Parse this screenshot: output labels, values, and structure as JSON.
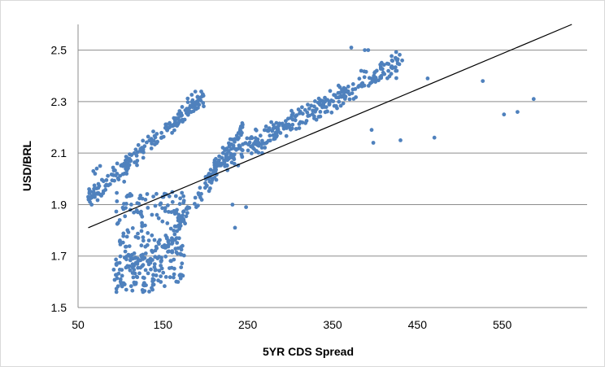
{
  "chart_data": {
    "type": "scatter",
    "title": "",
    "xlabel": "5YR CDS Spread",
    "ylabel": "USD/BRL",
    "xlim": [
      50,
      650
    ],
    "ylim": [
      1.5,
      2.6
    ],
    "x_ticks": [
      "50",
      "150",
      "250",
      "350",
      "450",
      "550"
    ],
    "y_ticks": [
      "1.5",
      "1.7",
      "1.9",
      "2.1",
      "2.3",
      "2.5"
    ],
    "grid": "horizontal",
    "legend": "none",
    "point_color": "#4f81bd",
    "trendline_color": "#000000",
    "trendline": {
      "x": [
        62,
        632
      ],
      "y": [
        1.81,
        2.6
      ]
    },
    "clusters": [
      {
        "name": "upper-left-arc",
        "x": [
          62,
          200
        ],
        "y_start": 1.92,
        "y_end": 2.33,
        "count": 200
      },
      {
        "name": "dense-core",
        "x": [
          95,
          175
        ],
        "y": [
          1.58,
          1.95
        ],
        "count": 230
      },
      {
        "name": "lower-tail",
        "x": [
          92,
          150
        ],
        "y": [
          1.56,
          1.7
        ],
        "count": 60
      },
      {
        "name": "rising-middle",
        "x": [
          150,
          245
        ],
        "y_start": 1.72,
        "y_end": 2.2,
        "count": 120
      },
      {
        "name": "right-band",
        "x": [
          210,
          430
        ],
        "y_start": 2.05,
        "y_end": 2.45,
        "count": 320
      }
    ],
    "points": [
      [
        62,
        1.93
      ],
      [
        63,
        1.96
      ],
      [
        64,
        1.91
      ],
      [
        65,
        1.95
      ],
      [
        66,
        1.9
      ],
      [
        68,
        2.03
      ],
      [
        70,
        2.02
      ],
      [
        72,
        2.04
      ],
      [
        74,
        1.98
      ],
      [
        76,
        2.05
      ],
      [
        232,
        1.9
      ],
      [
        235,
        1.81
      ],
      [
        248,
        1.89
      ],
      [
        267,
        2.1
      ],
      [
        372,
        2.51
      ],
      [
        388,
        2.5
      ],
      [
        392,
        2.5
      ],
      [
        420,
        2.46
      ],
      [
        432,
        2.46
      ],
      [
        462,
        2.39
      ],
      [
        470,
        2.16
      ],
      [
        398,
        2.14
      ],
      [
        396,
        2.19
      ],
      [
        527,
        2.38
      ],
      [
        552,
        2.25
      ],
      [
        568,
        2.26
      ],
      [
        587,
        2.31
      ],
      [
        430,
        2.15
      ]
    ]
  }
}
